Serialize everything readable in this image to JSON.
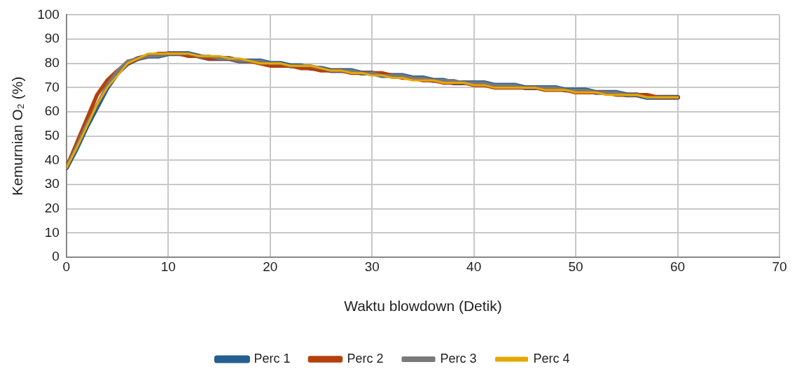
{
  "chart_data": {
    "type": "line",
    "xlabel": "Waktu blowdown (Detik)",
    "ylabel": "Kemurnian O₂ (%)",
    "x": [
      0,
      1,
      2,
      3,
      4,
      5,
      6,
      7,
      8,
      9,
      10,
      11,
      12,
      13,
      14,
      15,
      16,
      17,
      18,
      19,
      20,
      21,
      22,
      23,
      24,
      25,
      26,
      27,
      28,
      29,
      30,
      31,
      32,
      33,
      34,
      35,
      36,
      37,
      38,
      39,
      40,
      41,
      42,
      43,
      44,
      45,
      46,
      47,
      48,
      49,
      50,
      51,
      52,
      53,
      54,
      55,
      56,
      57,
      58,
      59,
      60
    ],
    "series": [
      {
        "name": "Perc 1",
        "color": "#255e91",
        "values": [
          37,
          45,
          54,
          62,
          70,
          76,
          80,
          82,
          83,
          83,
          84,
          84,
          84,
          83,
          82,
          82,
          82,
          81,
          81,
          81,
          80,
          80,
          79,
          79,
          78,
          78,
          77,
          77,
          77,
          76,
          76,
          75,
          75,
          75,
          74,
          74,
          73,
          73,
          72,
          72,
          72,
          72,
          71,
          71,
          71,
          70,
          70,
          70,
          70,
          69,
          69,
          69,
          68,
          68,
          68,
          67,
          67,
          66,
          66,
          66,
          66
        ]
      },
      {
        "name": "Perc 2",
        "color": "#b5400c",
        "values": [
          37,
          47,
          57,
          67,
          73,
          77,
          80,
          82,
          83,
          84,
          84,
          84,
          83,
          83,
          82,
          82,
          82,
          81,
          81,
          80,
          79,
          79,
          79,
          78,
          78,
          77,
          77,
          77,
          76,
          76,
          76,
          76,
          75,
          74,
          74,
          73,
          73,
          72,
          72,
          72,
          71,
          71,
          70,
          70,
          70,
          70,
          70,
          69,
          69,
          69,
          68,
          68,
          68,
          68,
          67,
          67,
          67,
          67,
          66,
          66,
          66
        ]
      },
      {
        "name": "Perc 3",
        "color": "#7a7a7a",
        "values": [
          37,
          46,
          55,
          63,
          71,
          77,
          81,
          82,
          83,
          83,
          84,
          84,
          84,
          83,
          83,
          82,
          82,
          81,
          81,
          81,
          80,
          80,
          79,
          79,
          79,
          78,
          77,
          77,
          77,
          76,
          76,
          75,
          75,
          75,
          74,
          74,
          73,
          73,
          73,
          72,
          72,
          72,
          71,
          71,
          71,
          70,
          70,
          70,
          70,
          69,
          69,
          69,
          68,
          68,
          68,
          67,
          67,
          66,
          66,
          66,
          66
        ]
      },
      {
        "name": "Perc 4",
        "color": "#e6a800",
        "values": [
          37,
          45,
          54,
          63,
          70,
          75,
          80,
          82,
          84,
          84,
          84,
          84,
          84,
          83,
          83,
          83,
          82,
          82,
          81,
          80,
          80,
          80,
          79,
          79,
          79,
          78,
          77,
          77,
          76,
          76,
          75,
          75,
          74,
          74,
          73,
          73,
          73,
          72,
          72,
          72,
          71,
          71,
          70,
          70,
          70,
          70,
          70,
          69,
          69,
          69,
          68,
          68,
          68,
          67,
          67,
          67,
          67,
          66,
          66,
          66,
          66
        ]
      }
    ],
    "xlim": [
      0,
      70
    ],
    "xticks": [
      0,
      10,
      20,
      30,
      40,
      50,
      60,
      70
    ],
    "ylim": [
      0,
      100
    ],
    "yticks": [
      0,
      10,
      20,
      30,
      40,
      50,
      60,
      70,
      80,
      90,
      100
    ],
    "grid": true,
    "legend": "bottom",
    "marker": "none",
    "line_style": "solid"
  }
}
